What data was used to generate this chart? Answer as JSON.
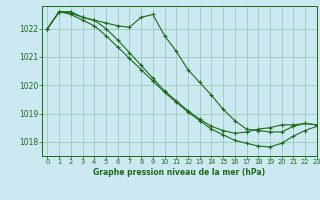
{
  "title": "Graphe pression niveau de la mer (hPa)",
  "background_color": "#cce8f0",
  "grid_color": "#99ccbb",
  "line_color": "#1a6b1a",
  "xlim": [
    -0.5,
    23
  ],
  "ylim": [
    1017.5,
    1022.8
  ],
  "yticks": [
    1018,
    1019,
    1020,
    1021,
    1022
  ],
  "xticks": [
    0,
    1,
    2,
    3,
    4,
    5,
    6,
    7,
    8,
    9,
    10,
    11,
    12,
    13,
    14,
    15,
    16,
    17,
    18,
    19,
    20,
    21,
    22,
    23
  ],
  "series": [
    [
      1022.0,
      1022.6,
      1022.6,
      1022.4,
      1022.3,
      1022.2,
      1022.1,
      1022.05,
      1022.4,
      1022.5,
      1021.75,
      1021.2,
      1020.55,
      1020.1,
      1019.65,
      1019.15,
      1018.75,
      1018.45,
      1018.4,
      1018.35,
      1018.35,
      1018.55,
      1018.65,
      1018.6
    ],
    [
      1022.0,
      1022.6,
      1022.55,
      1022.4,
      1022.3,
      1022.0,
      1021.6,
      1021.15,
      1020.7,
      1020.25,
      1019.8,
      1019.45,
      1019.1,
      1018.8,
      1018.55,
      1018.4,
      1018.3,
      1018.35,
      1018.45,
      1018.5,
      1018.6,
      1018.6,
      1018.65,
      1018.6
    ],
    [
      1022.0,
      1022.6,
      1022.5,
      1022.3,
      1022.1,
      1021.75,
      1021.35,
      1020.95,
      1020.55,
      1020.15,
      1019.75,
      1019.4,
      1019.05,
      1018.75,
      1018.45,
      1018.25,
      1018.05,
      1017.95,
      1017.85,
      1017.82,
      1017.95,
      1018.2,
      1018.4,
      1018.55
    ]
  ]
}
